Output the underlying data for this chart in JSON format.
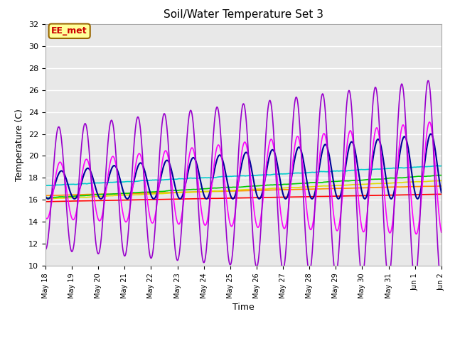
{
  "title": "Soil/Water Temperature Set 3",
  "xlabel": "Time",
  "ylabel": "Temperature (C)",
  "ylim": [
    10,
    32
  ],
  "yticks": [
    10,
    12,
    14,
    16,
    18,
    20,
    22,
    24,
    26,
    28,
    30,
    32
  ],
  "fig_bg": "#ffffff",
  "plot_bg": "#e8e8e8",
  "series": {
    "-16cm": {
      "color": "#ff0000",
      "lw": 1.2
    },
    "-8cm": {
      "color": "#ff8c00",
      "lw": 1.2
    },
    "-2cm": {
      "color": "#dddd00",
      "lw": 1.2
    },
    "+2cm": {
      "color": "#00cc00",
      "lw": 1.2
    },
    "+8cm": {
      "color": "#00cccc",
      "lw": 1.2
    },
    "+16cm": {
      "color": "#000099",
      "lw": 1.5
    },
    "+32cm": {
      "color": "#ff00ff",
      "lw": 1.2
    },
    "+64cm": {
      "color": "#9900cc",
      "lw": 1.2
    }
  },
  "annotation_text": "EE_met",
  "annotation_color": "#cc0000",
  "annotation_bg": "#ffff99",
  "annotation_border": "#996600",
  "day_labels": [
    "May 18",
    "May 19",
    "May 20",
    "May 21",
    "May 22",
    "May 23",
    "May 24",
    "May 25",
    "May 26",
    "May 27",
    "May 28",
    "May 29",
    "May 30",
    "May 31",
    "Jun 1",
    "Jun 2"
  ]
}
